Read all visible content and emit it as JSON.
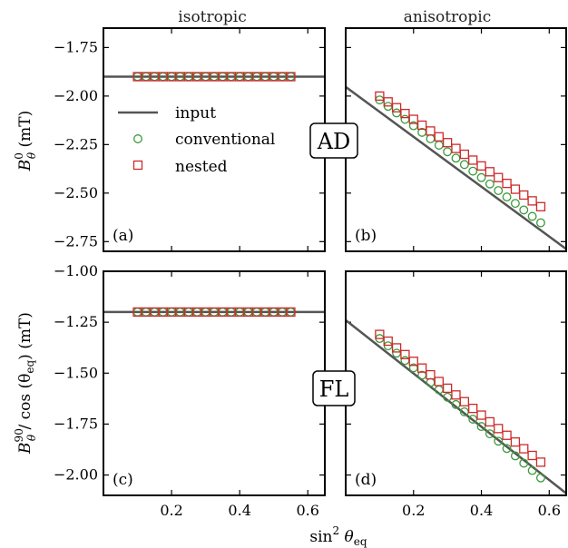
{
  "figure": {
    "column_titles": [
      "isotropic",
      "anisotropic"
    ],
    "row_tags": [
      "AD",
      "FL"
    ],
    "ylabels": [
      {
        "main": "B",
        "sup": "0",
        "sub": "θ",
        "unit": " (mT)"
      },
      {
        "main": "B",
        "sup": "90",
        "sub": "θ",
        "rest": " / cos (θ",
        "rest_sub": "eq",
        "unit": ") (mT)"
      }
    ],
    "xlabel": {
      "main": "sin",
      "sup": "2",
      "theta": " θ",
      "sub": "eq"
    },
    "legend": [
      {
        "label": "input",
        "marker": "line"
      },
      {
        "label": "conventional",
        "marker": "circle"
      },
      {
        "label": "nested",
        "marker": "square"
      }
    ],
    "colors": {
      "input": "#555555",
      "conventional": "#3a9a3a",
      "nested": "#cc2a2a",
      "axes": "#000000"
    }
  },
  "chart_data": [
    {
      "type": "line",
      "panel": "(a)",
      "xlim": [
        0.0,
        0.65
      ],
      "ylim": [
        -2.8,
        -1.65
      ],
      "xticks": [
        0.2,
        0.4,
        0.6
      ],
      "yticks": [
        -2.75,
        -2.5,
        -2.25,
        -2.0,
        -1.75
      ],
      "ytick_labels": [
        "−2.75",
        "−2.50",
        "−2.25",
        "−2.00",
        "−1.75"
      ],
      "xtick_labels": [],
      "series": [
        {
          "name": "input",
          "kind": "line",
          "x": [
            0.0,
            0.65
          ],
          "y": [
            -1.9,
            -1.9
          ]
        },
        {
          "name": "conventional",
          "kind": "scatter",
          "x": [
            0.1,
            0.125,
            0.15,
            0.175,
            0.2,
            0.225,
            0.25,
            0.275,
            0.3,
            0.325,
            0.35,
            0.375,
            0.4,
            0.425,
            0.45,
            0.475,
            0.5,
            0.525,
            0.55
          ],
          "y": [
            -1.9,
            -1.9,
            -1.9,
            -1.9,
            -1.9,
            -1.9,
            -1.9,
            -1.9,
            -1.9,
            -1.9,
            -1.9,
            -1.9,
            -1.9,
            -1.9,
            -1.9,
            -1.9,
            -1.9,
            -1.9,
            -1.9
          ]
        },
        {
          "name": "nested",
          "kind": "scatter",
          "x": [
            0.1,
            0.125,
            0.15,
            0.175,
            0.2,
            0.225,
            0.25,
            0.275,
            0.3,
            0.325,
            0.35,
            0.375,
            0.4,
            0.425,
            0.45,
            0.475,
            0.5,
            0.525,
            0.55
          ],
          "y": [
            -1.9,
            -1.9,
            -1.9,
            -1.9,
            -1.9,
            -1.9,
            -1.9,
            -1.9,
            -1.9,
            -1.9,
            -1.9,
            -1.9,
            -1.9,
            -1.9,
            -1.9,
            -1.9,
            -1.9,
            -1.9,
            -1.9
          ]
        }
      ]
    },
    {
      "type": "line",
      "panel": "(b)",
      "xlim": [
        0.0,
        0.65
      ],
      "ylim": [
        -2.8,
        -1.65
      ],
      "xticks": [
        0.2,
        0.4,
        0.6
      ],
      "yticks": [
        -2.75,
        -2.5,
        -2.25,
        -2.0,
        -1.75
      ],
      "ytick_labels": [],
      "xtick_labels": [],
      "series": [
        {
          "name": "input",
          "kind": "line",
          "x": [
            0.0,
            0.65
          ],
          "y": [
            -1.953,
            -2.788
          ]
        },
        {
          "name": "conventional",
          "kind": "scatter",
          "x": [
            0.1,
            0.125,
            0.15,
            0.175,
            0.2,
            0.225,
            0.25,
            0.275,
            0.3,
            0.325,
            0.35,
            0.375,
            0.4,
            0.425,
            0.45,
            0.475,
            0.5,
            0.525,
            0.55,
            0.575
          ],
          "y": [
            -2.02,
            -2.053,
            -2.087,
            -2.12,
            -2.153,
            -2.187,
            -2.22,
            -2.253,
            -2.287,
            -2.32,
            -2.353,
            -2.387,
            -2.42,
            -2.453,
            -2.487,
            -2.52,
            -2.553,
            -2.587,
            -2.62,
            -2.653
          ]
        },
        {
          "name": "nested",
          "kind": "scatter",
          "x": [
            0.1,
            0.125,
            0.15,
            0.175,
            0.2,
            0.225,
            0.25,
            0.275,
            0.3,
            0.325,
            0.35,
            0.375,
            0.4,
            0.425,
            0.45,
            0.475,
            0.5,
            0.525,
            0.55,
            0.575
          ],
          "y": [
            -2.0,
            -2.03,
            -2.06,
            -2.09,
            -2.12,
            -2.15,
            -2.18,
            -2.21,
            -2.24,
            -2.27,
            -2.3,
            -2.33,
            -2.36,
            -2.39,
            -2.42,
            -2.45,
            -2.48,
            -2.51,
            -2.54,
            -2.57
          ]
        }
      ]
    },
    {
      "type": "line",
      "panel": "(c)",
      "xlim": [
        0.0,
        0.65
      ],
      "ylim": [
        -2.1,
        -1.0
      ],
      "xticks": [
        0.2,
        0.4,
        0.6
      ],
      "yticks": [
        -2.0,
        -1.75,
        -1.5,
        -1.25,
        -1.0
      ],
      "ytick_labels": [
        "−2.00",
        "−1.75",
        "−1.50",
        "−1.25",
        "−1.00"
      ],
      "xtick_labels": [
        "0.2",
        "0.4",
        "0.6"
      ],
      "series": [
        {
          "name": "input",
          "kind": "line",
          "x": [
            0.0,
            0.65
          ],
          "y": [
            -1.2,
            -1.2
          ]
        },
        {
          "name": "conventional",
          "kind": "scatter",
          "x": [
            0.1,
            0.125,
            0.15,
            0.175,
            0.2,
            0.225,
            0.25,
            0.275,
            0.3,
            0.325,
            0.35,
            0.375,
            0.4,
            0.425,
            0.45,
            0.475,
            0.5,
            0.525,
            0.55
          ],
          "y": [
            -1.2,
            -1.2,
            -1.2,
            -1.2,
            -1.2,
            -1.2,
            -1.2,
            -1.2,
            -1.2,
            -1.2,
            -1.2,
            -1.2,
            -1.2,
            -1.2,
            -1.2,
            -1.2,
            -1.2,
            -1.2,
            -1.2
          ]
        },
        {
          "name": "nested",
          "kind": "scatter",
          "x": [
            0.1,
            0.125,
            0.15,
            0.175,
            0.2,
            0.225,
            0.25,
            0.275,
            0.3,
            0.325,
            0.35,
            0.375,
            0.4,
            0.425,
            0.45,
            0.475,
            0.5,
            0.525,
            0.55
          ],
          "y": [
            -1.2,
            -1.2,
            -1.2,
            -1.2,
            -1.2,
            -1.2,
            -1.2,
            -1.2,
            -1.2,
            -1.2,
            -1.2,
            -1.2,
            -1.2,
            -1.2,
            -1.2,
            -1.2,
            -1.2,
            -1.2,
            -1.2
          ]
        }
      ]
    },
    {
      "type": "line",
      "panel": "(d)",
      "xlim": [
        0.0,
        0.65
      ],
      "ylim": [
        -2.1,
        -1.0
      ],
      "xticks": [
        0.2,
        0.4,
        0.6
      ],
      "yticks": [
        -2.0,
        -1.75,
        -1.5,
        -1.25,
        -1.0
      ],
      "ytick_labels": [],
      "xtick_labels": [
        "0.2",
        "0.4",
        "0.6"
      ],
      "series": [
        {
          "name": "input",
          "kind": "line",
          "x": [
            0.0,
            0.65
          ],
          "y": [
            -1.24,
            -2.09
          ]
        },
        {
          "name": "conventional",
          "kind": "scatter",
          "x": [
            0.1,
            0.125,
            0.15,
            0.175,
            0.2,
            0.225,
            0.25,
            0.275,
            0.3,
            0.325,
            0.35,
            0.375,
            0.4,
            0.425,
            0.45,
            0.475,
            0.5,
            0.525,
            0.55,
            0.575
          ],
          "y": [
            -1.33,
            -1.366,
            -1.402,
            -1.438,
            -1.474,
            -1.51,
            -1.546,
            -1.582,
            -1.618,
            -1.654,
            -1.69,
            -1.726,
            -1.762,
            -1.798,
            -1.834,
            -1.87,
            -1.906,
            -1.942,
            -1.978,
            -2.014
          ]
        },
        {
          "name": "nested",
          "kind": "scatter",
          "x": [
            0.1,
            0.125,
            0.15,
            0.175,
            0.2,
            0.225,
            0.25,
            0.275,
            0.3,
            0.325,
            0.35,
            0.375,
            0.4,
            0.425,
            0.45,
            0.475,
            0.5,
            0.525,
            0.55,
            0.575
          ],
          "y": [
            -1.31,
            -1.343,
            -1.376,
            -1.409,
            -1.442,
            -1.475,
            -1.508,
            -1.541,
            -1.574,
            -1.607,
            -1.64,
            -1.673,
            -1.706,
            -1.739,
            -1.772,
            -1.805,
            -1.838,
            -1.871,
            -1.904,
            -1.937
          ]
        }
      ]
    }
  ]
}
